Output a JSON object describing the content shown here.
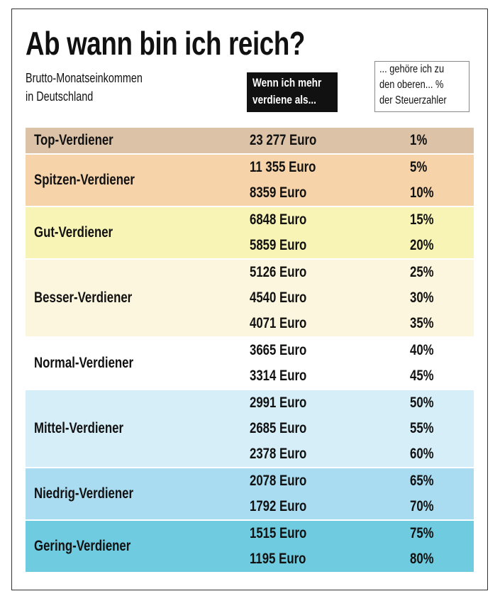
{
  "header": {
    "title": "Ab wann bin ich reich?",
    "subtitle": [
      "Brutto-Monatseinkommen",
      "in Deutschland"
    ]
  },
  "table": {
    "columns": [
      [
        "Wenn ich mehr",
        "verdiene als..."
      ],
      [
        "... gehöre ich zu",
        "den oberen... %",
        "der Steuerzahler"
      ]
    ],
    "groups": [
      {
        "name": "Top-Verdiener",
        "color": "#dcc2a6",
        "rows": [
          [
            "23 277 Euro",
            "1%"
          ]
        ]
      },
      {
        "name": "Spitzen-Verdiener",
        "color": "#f7d3a9",
        "rows": [
          [
            "11 355 Euro",
            "5%"
          ],
          [
            "8359 Euro",
            "10%"
          ]
        ]
      },
      {
        "name": "Gut-Verdiener",
        "color": "#f8f4b6",
        "rows": [
          [
            "6848 Euro",
            "15%"
          ],
          [
            "5859 Euro",
            "20%"
          ]
        ]
      },
      {
        "name": "Besser-Verdiener",
        "color": "#fbf6dd",
        "rows": [
          [
            "5126 Euro",
            "25%"
          ],
          [
            "4540 Euro",
            "30%"
          ],
          [
            "4071 Euro",
            "35%"
          ]
        ]
      },
      {
        "name": "Normal-Verdiener",
        "color": "#ffffff",
        "rows": [
          [
            "3665 Euro",
            "40%"
          ],
          [
            "3314 Euro",
            "45%"
          ]
        ]
      },
      {
        "name": "Mittel-Verdiener",
        "color": "#d6eef8",
        "rows": [
          [
            "2991 Euro",
            "50%"
          ],
          [
            "2685 Euro",
            "55%"
          ],
          [
            "2378 Euro",
            "60%"
          ]
        ]
      },
      {
        "name": "Niedrig-Verdiener",
        "color": "#a9dcf1",
        "rows": [
          [
            "2078 Euro",
            "65%"
          ],
          [
            "1792 Euro",
            "70%"
          ]
        ]
      },
      {
        "name": "Gering-Verdiener",
        "color": "#6fcbe0",
        "rows": [
          [
            "1515 Euro",
            "75%"
          ],
          [
            "1195 Euro",
            "80%"
          ]
        ]
      }
    ]
  }
}
